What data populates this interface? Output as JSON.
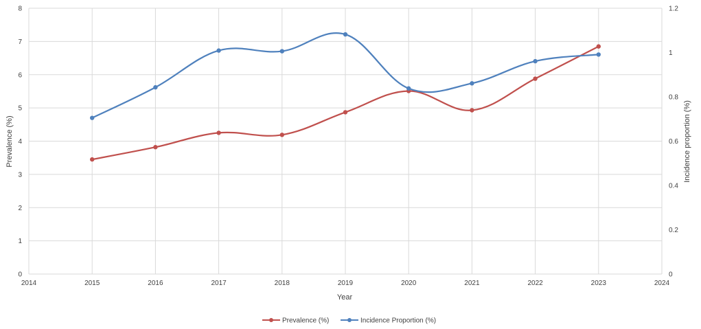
{
  "chart_data": {
    "type": "line",
    "smooth": true,
    "xlabel": "Year",
    "ylabel_left": "Prevalence (%)",
    "ylabel_right": "Incidence proportion (%)",
    "xlim": [
      2014,
      2024
    ],
    "ylim_left": [
      0,
      8
    ],
    "ylim_right": [
      0,
      1.2
    ],
    "x_ticks": [
      "2014",
      "2015",
      "2016",
      "2017",
      "2018",
      "2019",
      "2020",
      "2021",
      "2022",
      "2023",
      "2024"
    ],
    "y_left_ticks": [
      "0",
      "1",
      "2",
      "3",
      "4",
      "5",
      "6",
      "7",
      "8"
    ],
    "y_right_ticks": [
      "0",
      "0.2",
      "0.4",
      "0.6",
      "0.8",
      "1",
      "1.2"
    ],
    "grid": "vertical and horizontal",
    "legend_position": "bottom",
    "series": [
      {
        "name": "Prevalence (%)",
        "axis": "left",
        "color": "#c0504d",
        "x": [
          2015,
          2016,
          2017,
          2018,
          2019,
          2020,
          2021,
          2022,
          2023
        ],
        "values": [
          3.45,
          3.82,
          4.25,
          4.19,
          4.87,
          5.51,
          4.93,
          5.88,
          6.85
        ]
      },
      {
        "name": "Incidence Proportion (%)",
        "axis": "right",
        "color": "#4f81bd",
        "x": [
          2015,
          2016,
          2017,
          2018,
          2019,
          2020,
          2021,
          2022,
          2023
        ],
        "values": [
          0.705,
          0.843,
          1.009,
          1.006,
          1.082,
          0.838,
          0.861,
          0.961,
          0.991
        ]
      }
    ]
  }
}
